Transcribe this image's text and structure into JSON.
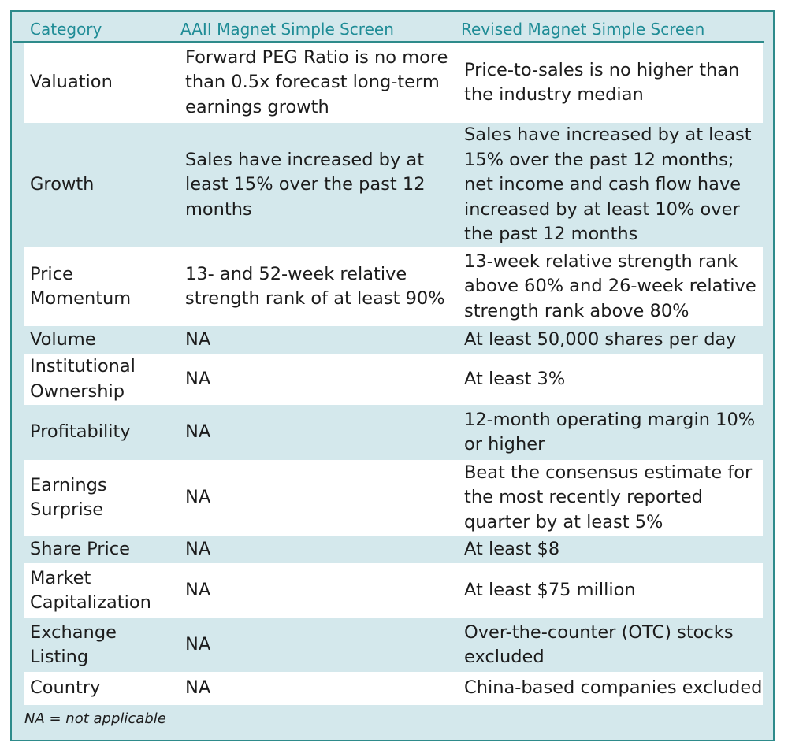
{
  "header": {
    "category": "Category",
    "aaii": "AAII Magnet Simple Screen",
    "revised": "Revised Magnet Simple Screen"
  },
  "rows": [
    {
      "category": "Valuation",
      "aaii": "Forward PEG Ratio is no more than 0.5x forecast long-term earnings growth",
      "revised": "Price-to-sales is no higher than the industry median"
    },
    {
      "category": "Growth",
      "aaii": "Sales have increased by at least 15% over the past 12 months",
      "revised": "Sales have increased by at least 15% over the past 12 months; net income and cash flow have increased by at least 10% over the past 12 months"
    },
    {
      "category": "Price Momentum",
      "aaii": "13- and 52-week relative strength rank of at least 90%",
      "revised": "13-week relative strength rank above 60% and 26-week relative strength rank above 80%"
    },
    {
      "category": "Volume",
      "aaii": "NA",
      "revised": "At least 50,000 shares per day"
    },
    {
      "category": "Institutional Ownership",
      "aaii": "NA",
      "revised": "At least 3%"
    },
    {
      "category": "Profitability",
      "aaii": "NA",
      "revised": "12-month operating margin 10% or higher"
    },
    {
      "category": "Earnings Surprise",
      "aaii": "NA",
      "revised": "Beat the consensus estimate for the most recently reported quarter by at least 5%"
    },
    {
      "category": "Share Price",
      "aaii": "NA",
      "revised": "At least $8"
    },
    {
      "category": "Market Capitalization",
      "aaii": "NA",
      "revised": "At least $75 million"
    },
    {
      "category": "Exchange Listing",
      "aaii": "NA",
      "revised": "Over-the-counter (OTC) stocks excluded"
    },
    {
      "category": "Country",
      "aaii": "NA",
      "revised": "China-based companies excluded"
    }
  ],
  "footnote": "NA = not applicable"
}
